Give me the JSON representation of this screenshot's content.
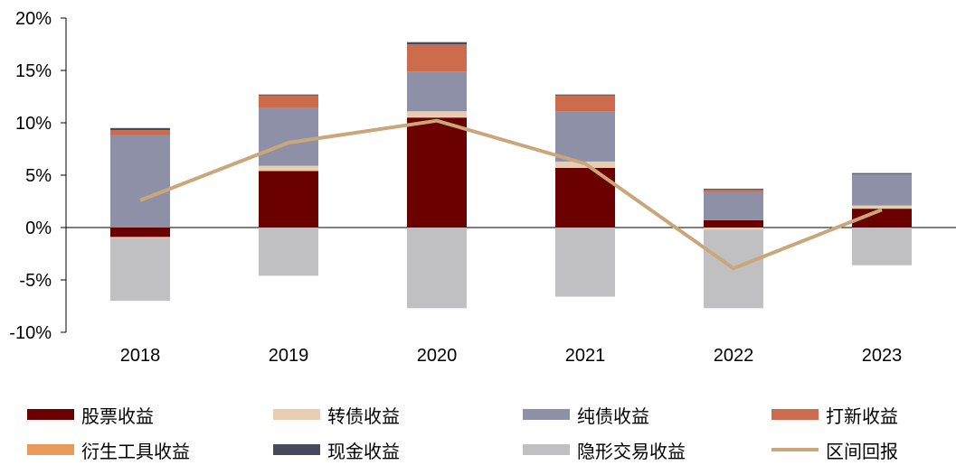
{
  "chart_data": {
    "type": "bar",
    "stacked": true,
    "categories": [
      "2018",
      "2019",
      "2020",
      "2021",
      "2022",
      "2023"
    ],
    "y_ticks": [
      "20%",
      "15%",
      "10%",
      "5%",
      "0%",
      "-5%",
      "-10%"
    ],
    "ylim": [
      -10,
      20
    ],
    "series": [
      {
        "name": "股票收益",
        "color": "#6b0000",
        "values": [
          -0.9,
          5.4,
          10.5,
          5.7,
          0.7,
          1.8
        ]
      },
      {
        "name": "转债收益",
        "color": "#e8cdb1",
        "values": [
          -0.1,
          0.5,
          0.6,
          0.6,
          -0.2,
          0.3
        ]
      },
      {
        "name": "纯债收益",
        "color": "#8e90a8",
        "values": [
          8.8,
          5.5,
          3.8,
          4.8,
          2.7,
          3.0
        ]
      },
      {
        "name": "打新收益",
        "color": "#cd6b4d",
        "values": [
          0.5,
          1.2,
          2.6,
          1.5,
          0.2,
          0.0
        ]
      },
      {
        "name": "衍生工具收益",
        "color": "#e9995a",
        "values": [
          0.0,
          0.0,
          0.0,
          0.0,
          0.0,
          0.0
        ]
      },
      {
        "name": "现金收益",
        "color": "#464a5c",
        "values": [
          0.2,
          0.1,
          0.2,
          0.1,
          0.1,
          0.1
        ]
      },
      {
        "name": "隐形交易收益",
        "color": "#c0c0c2",
        "values": [
          -6.0,
          -4.6,
          -7.7,
          -6.6,
          -7.5,
          -3.6
        ]
      }
    ],
    "line": {
      "name": "区间回报",
      "color": "#c9a77a",
      "values": [
        2.6,
        8.1,
        10.2,
        6.1,
        -3.9,
        1.7
      ]
    },
    "legend_position": "bottom",
    "grid": false
  }
}
